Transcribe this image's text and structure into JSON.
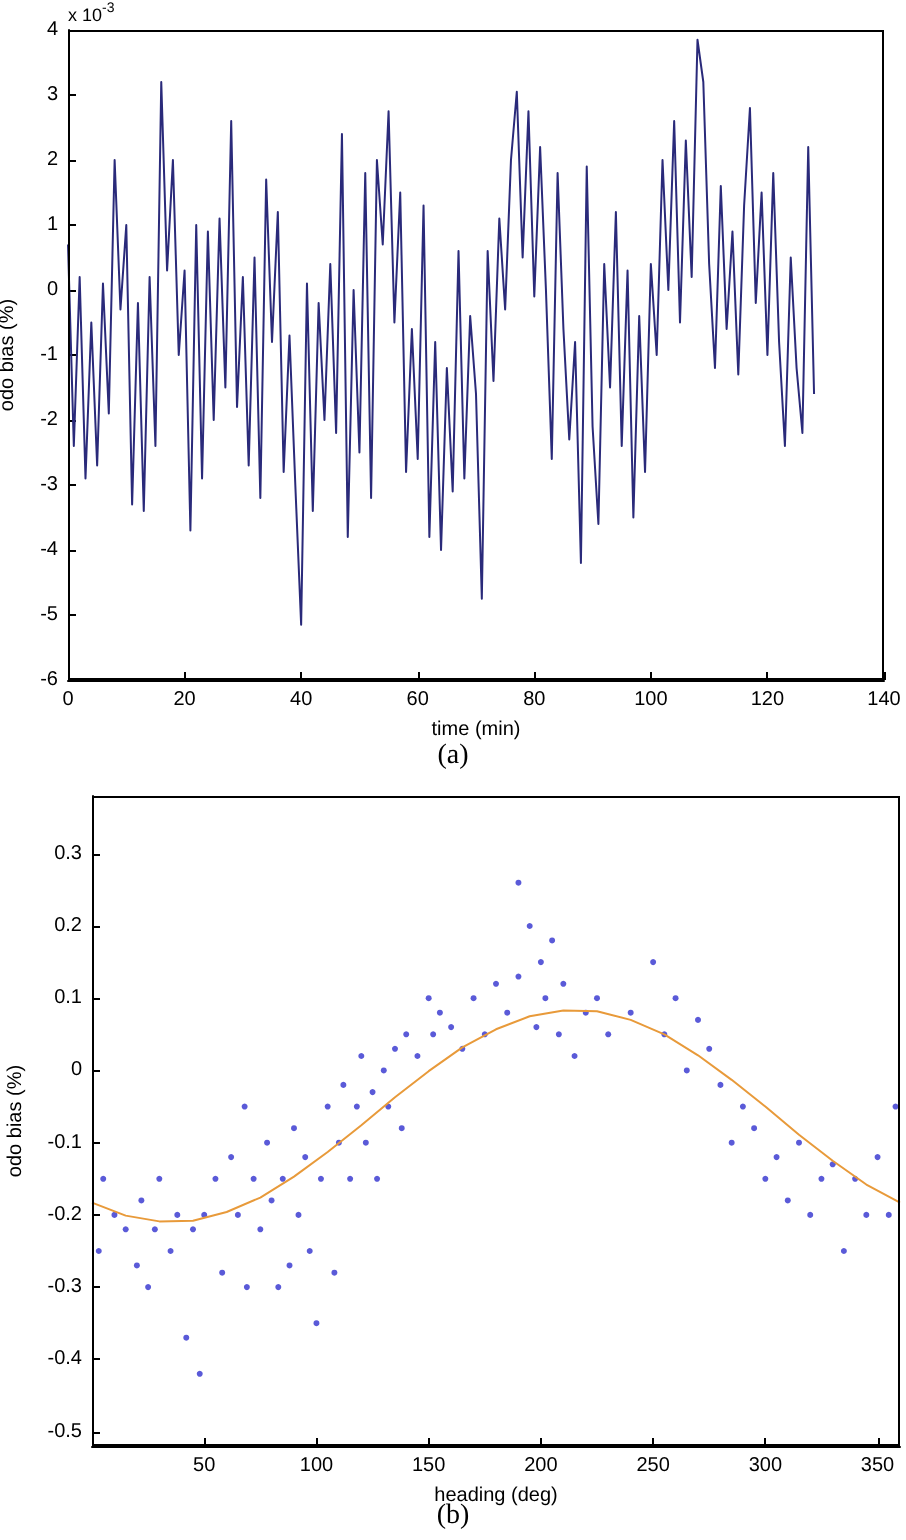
{
  "chart_data": [
    {
      "type": "line",
      "title": "(a)",
      "xlabel": "time (min)",
      "ylabel": "odo bias (%)",
      "annotations": [
        "x 10$^{-3}$"
      ],
      "xlim": [
        0,
        140
      ],
      "xticks": [
        0,
        20,
        40,
        60,
        80,
        100,
        120,
        140
      ],
      "ylim": [
        -6,
        4
      ],
      "yticks": [
        -6,
        -5,
        -4,
        -3,
        -2,
        -1,
        0,
        1,
        2,
        3,
        4
      ],
      "grid": false,
      "series": [
        {
          "color": "#2a2a7a",
          "x": [
            0,
            1,
            2,
            3,
            4,
            5,
            6,
            7,
            8,
            9,
            10,
            11,
            12,
            13,
            14,
            15,
            16,
            17,
            18,
            19,
            20,
            21,
            22,
            23,
            24,
            25,
            26,
            27,
            28,
            29,
            30,
            31,
            32,
            33,
            34,
            35,
            36,
            37,
            38,
            39,
            40,
            41,
            42,
            43,
            44,
            45,
            46,
            47,
            48,
            49,
            50,
            51,
            52,
            53,
            54,
            55,
            56,
            57,
            58,
            59,
            60,
            61,
            62,
            63,
            64,
            65,
            66,
            67,
            68,
            69,
            70,
            71,
            72,
            73,
            74,
            75,
            76,
            77,
            78,
            79,
            80,
            81,
            82,
            83,
            84,
            85,
            86,
            87,
            88,
            89,
            90,
            91,
            92,
            93,
            94,
            95,
            96,
            97,
            98,
            99,
            100,
            101,
            102,
            103,
            104,
            105,
            106,
            107,
            108,
            109,
            110,
            111,
            112,
            113,
            114,
            115,
            116,
            117,
            118,
            119,
            120,
            121,
            122,
            123,
            124,
            125,
            126,
            127,
            128
          ],
          "values": [
            0.7,
            -2.4,
            0.2,
            -2.9,
            -0.5,
            -2.7,
            0.1,
            -1.9,
            2.0,
            -0.3,
            1.0,
            -3.3,
            -0.2,
            -3.4,
            0.2,
            -2.4,
            3.2,
            0.3,
            2.0,
            -1.0,
            0.3,
            -3.7,
            1.0,
            -2.9,
            0.9,
            -2.0,
            1.1,
            -1.5,
            2.6,
            -1.8,
            0.2,
            -2.7,
            0.5,
            -3.2,
            1.7,
            -0.8,
            1.2,
            -2.8,
            -0.7,
            -3.0,
            -5.15,
            0.1,
            -3.4,
            -0.2,
            -2.0,
            0.4,
            -2.2,
            2.4,
            -3.8,
            0.0,
            -2.5,
            1.8,
            -3.2,
            2.0,
            0.7,
            2.75,
            -0.5,
            1.5,
            -2.8,
            -0.6,
            -2.6,
            1.3,
            -3.8,
            -0.8,
            -4.0,
            -1.2,
            -3.1,
            0.6,
            -2.9,
            -0.4,
            -1.6,
            -4.75,
            0.6,
            -1.4,
            1.1,
            -0.3,
            2.0,
            3.05,
            0.5,
            2.75,
            -0.1,
            2.2,
            0.0,
            -2.6,
            1.8,
            -0.6,
            -2.3,
            -0.8,
            -4.2,
            1.9,
            -2.1,
            -3.6,
            0.4,
            -1.5,
            1.2,
            -2.4,
            0.3,
            -3.5,
            -0.4,
            -2.8,
            0.4,
            -1.0,
            2.0,
            0.0,
            2.6,
            -0.5,
            2.3,
            0.2,
            3.85,
            3.2,
            0.4,
            -1.2,
            1.6,
            -0.6,
            0.9,
            -1.3,
            1.3,
            2.8,
            -0.2,
            1.5,
            -1.0,
            1.8,
            -0.8,
            -2.4,
            0.5,
            -1.2,
            -2.2,
            2.2,
            -1.6
          ]
        }
      ]
    },
    {
      "type": "scatter",
      "title": "(b)",
      "xlabel": "heading (deg)",
      "ylabel": "odo bias (%)",
      "xlim": [
        0,
        360
      ],
      "xticks": [
        50,
        100,
        150,
        200,
        250,
        300,
        350
      ],
      "ylim": [
        -0.52,
        0.38
      ],
      "yticks": [
        -0.5,
        -0.4,
        -0.3,
        -0.2,
        -0.1,
        0,
        0.1,
        0.2,
        0.3
      ],
      "grid": false,
      "series": [
        {
          "color": "#5a5ad8",
          "x": [
            3,
            5,
            10,
            15,
            20,
            22,
            25,
            28,
            30,
            35,
            38,
            42,
            45,
            48,
            50,
            55,
            58,
            62,
            65,
            68,
            69,
            72,
            75,
            78,
            80,
            83,
            85,
            88,
            90,
            92,
            95,
            97,
            100,
            102,
            105,
            108,
            110,
            112,
            115,
            118,
            120,
            122,
            125,
            127,
            130,
            132,
            135,
            138,
            140,
            145,
            150,
            152,
            155,
            160,
            165,
            170,
            175,
            180,
            185,
            190,
            190,
            195,
            198,
            200,
            202,
            205,
            208,
            210,
            215,
            220,
            225,
            230,
            240,
            250,
            255,
            260,
            265,
            270,
            275,
            280,
            285,
            290,
            295,
            300,
            305,
            310,
            315,
            320,
            325,
            330,
            335,
            340,
            345,
            350,
            355,
            358
          ],
          "values": [
            -0.25,
            -0.15,
            -0.2,
            -0.22,
            -0.27,
            -0.18,
            -0.3,
            -0.22,
            -0.15,
            -0.25,
            -0.2,
            -0.37,
            -0.22,
            -0.42,
            -0.2,
            -0.15,
            -0.28,
            -0.12,
            -0.2,
            -0.05,
            -0.3,
            -0.15,
            -0.22,
            -0.1,
            -0.18,
            -0.3,
            -0.15,
            -0.27,
            -0.08,
            -0.2,
            -0.12,
            -0.25,
            -0.35,
            -0.15,
            -0.05,
            -0.28,
            -0.1,
            -0.02,
            -0.15,
            -0.05,
            0.02,
            -0.1,
            -0.03,
            -0.15,
            0.0,
            -0.05,
            0.03,
            -0.08,
            0.05,
            0.02,
            0.1,
            0.05,
            0.08,
            0.06,
            0.03,
            0.1,
            0.05,
            0.12,
            0.08,
            0.13,
            0.26,
            0.2,
            0.06,
            0.15,
            0.1,
            0.18,
            0.05,
            0.12,
            0.02,
            0.08,
            0.1,
            0.05,
            0.08,
            0.15,
            0.05,
            0.1,
            0.0,
            0.07,
            0.03,
            -0.02,
            -0.1,
            -0.05,
            -0.08,
            -0.15,
            -0.12,
            -0.18,
            -0.1,
            -0.2,
            -0.15,
            -0.13,
            -0.25,
            -0.15,
            -0.2,
            -0.12,
            -0.2,
            -0.05
          ]
        },
        {
          "type": "line",
          "color": "#e89a3a",
          "x": [
            0,
            15,
            30,
            45,
            60,
            75,
            90,
            105,
            120,
            135,
            150,
            165,
            180,
            195,
            210,
            225,
            240,
            255,
            270,
            285,
            300,
            315,
            330,
            345,
            360
          ],
          "values": [
            -0.183,
            -0.201,
            -0.209,
            -0.208,
            -0.196,
            -0.176,
            -0.147,
            -0.113,
            -0.076,
            -0.037,
            -0.001,
            0.032,
            0.057,
            0.075,
            0.083,
            0.082,
            0.07,
            0.05,
            0.021,
            -0.013,
            -0.05,
            -0.089,
            -0.125,
            -0.158,
            -0.183
          ]
        }
      ]
    }
  ]
}
